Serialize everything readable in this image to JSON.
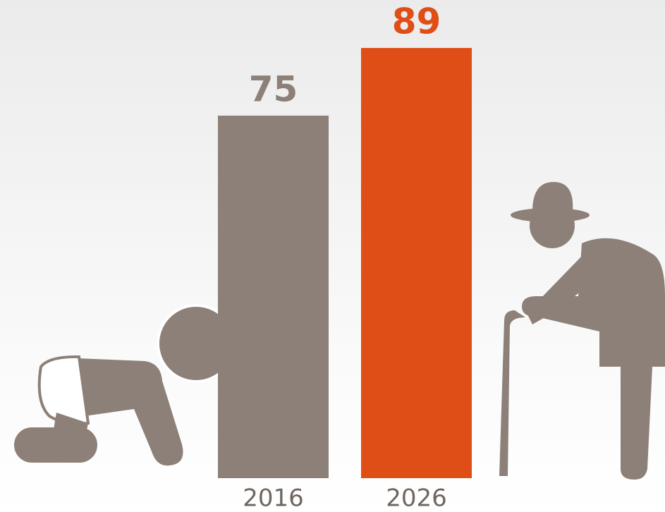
{
  "chart_data": {
    "type": "bar",
    "categories": [
      "2016",
      "2026"
    ],
    "values": [
      75,
      89
    ],
    "colors": [
      "#8c8078",
      "#e04e17"
    ]
  }
}
